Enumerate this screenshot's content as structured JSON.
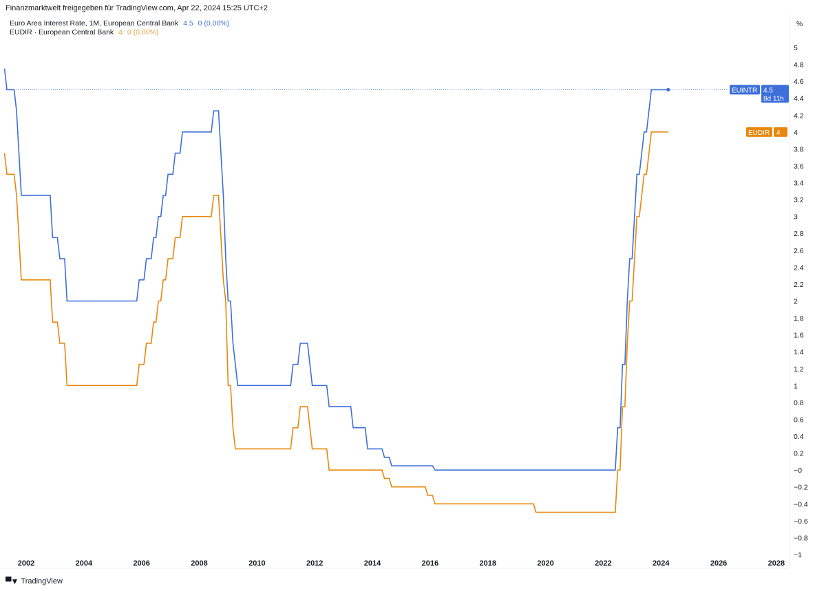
{
  "header": {
    "title": "Finanzmarktwelt freigegeben für TradingView.com, Apr 22, 2024 15:25 UTC+2"
  },
  "legend": [
    {
      "name": "Euro Area Interest Rate, 1M, European Central Bank",
      "value": "4.5",
      "change": "0 (0.00%)",
      "color": "#3d6fd9"
    },
    {
      "name": "EUDIR · European Central Bank",
      "value": "4",
      "change": "0 (0.00%)",
      "color": "#e8a23c"
    }
  ],
  "branding": {
    "logo_text": "TradingView"
  },
  "chart_data": {
    "type": "line",
    "step": true,
    "ylabel": "%",
    "ylim": [
      -1,
      5
    ],
    "xlim": [
      "2001-04",
      "2028-06"
    ],
    "y_ticks": [
      "5",
      "4.8",
      "4.6",
      "4.4",
      "4.2",
      "4",
      "3.8",
      "3.6",
      "3.4",
      "3.2",
      "3",
      "2.8",
      "2.6",
      "2.4",
      "2.2",
      "2",
      "1.8",
      "1.6",
      "1.4",
      "1.2",
      "1",
      "0.8",
      "0.6",
      "0.4",
      "0.2",
      "−0",
      "−0.2",
      "−0.4",
      "−0.6",
      "−0.8",
      "−1"
    ],
    "x_ticks": [
      "2002",
      "2004",
      "2006",
      "2008",
      "2010",
      "2012",
      "2014",
      "2016",
      "2018",
      "2020",
      "2022",
      "2024",
      "2026",
      "2028"
    ],
    "grid": false,
    "last_date": "2024-04",
    "series": [
      {
        "name": "EUINTR",
        "color": "#3d6fd9",
        "last_label": "4.5",
        "countdown": "8d 11h",
        "changes": [
          [
            "2001-04",
            4.75
          ],
          [
            "2001-05",
            4.5
          ],
          [
            "2001-09",
            4.25
          ],
          [
            "2001-10",
            3.75
          ],
          [
            "2001-11",
            3.25
          ],
          [
            "2002-12",
            2.75
          ],
          [
            "2003-03",
            2.5
          ],
          [
            "2003-06",
            2.0
          ],
          [
            "2005-12",
            2.25
          ],
          [
            "2006-03",
            2.5
          ],
          [
            "2006-06",
            2.75
          ],
          [
            "2006-08",
            3.0
          ],
          [
            "2006-10",
            3.25
          ],
          [
            "2006-12",
            3.5
          ],
          [
            "2007-03",
            3.75
          ],
          [
            "2007-06",
            4.0
          ],
          [
            "2008-07",
            4.25
          ],
          [
            "2008-10",
            3.75
          ],
          [
            "2008-11",
            3.25
          ],
          [
            "2008-12",
            2.5
          ],
          [
            "2009-01",
            2.0
          ],
          [
            "2009-03",
            1.5
          ],
          [
            "2009-04",
            1.25
          ],
          [
            "2009-05",
            1.0
          ],
          [
            "2011-04",
            1.25
          ],
          [
            "2011-07",
            1.5
          ],
          [
            "2011-11",
            1.25
          ],
          [
            "2011-12",
            1.0
          ],
          [
            "2012-07",
            0.75
          ],
          [
            "2013-05",
            0.5
          ],
          [
            "2013-11",
            0.25
          ],
          [
            "2014-06",
            0.15
          ],
          [
            "2014-09",
            0.05
          ],
          [
            "2016-03",
            0.0
          ],
          [
            "2022-07",
            0.5
          ],
          [
            "2022-09",
            1.25
          ],
          [
            "2022-11",
            2.0
          ],
          [
            "2022-12",
            2.5
          ],
          [
            "2023-02",
            3.0
          ],
          [
            "2023-03",
            3.5
          ],
          [
            "2023-05",
            3.75
          ],
          [
            "2023-06",
            4.0
          ],
          [
            "2023-08",
            4.25
          ],
          [
            "2023-09",
            4.5
          ]
        ]
      },
      {
        "name": "EUDIR",
        "color": "#e8870c",
        "last_label": "4",
        "changes": [
          [
            "2001-04",
            3.75
          ],
          [
            "2001-05",
            3.5
          ],
          [
            "2001-09",
            3.25
          ],
          [
            "2001-10",
            2.75
          ],
          [
            "2001-11",
            2.25
          ],
          [
            "2002-12",
            1.75
          ],
          [
            "2003-03",
            1.5
          ],
          [
            "2003-06",
            1.0
          ],
          [
            "2005-12",
            1.25
          ],
          [
            "2006-03",
            1.5
          ],
          [
            "2006-06",
            1.75
          ],
          [
            "2006-08",
            2.0
          ],
          [
            "2006-10",
            2.25
          ],
          [
            "2006-12",
            2.5
          ],
          [
            "2007-03",
            2.75
          ],
          [
            "2007-06",
            3.0
          ],
          [
            "2008-07",
            3.25
          ],
          [
            "2008-10",
            2.75
          ],
          [
            "2008-11",
            2.25
          ],
          [
            "2008-12",
            2.0
          ],
          [
            "2009-01",
            1.0
          ],
          [
            "2009-03",
            0.5
          ],
          [
            "2009-04",
            0.25
          ],
          [
            "2011-04",
            0.5
          ],
          [
            "2011-07",
            0.75
          ],
          [
            "2011-11",
            0.5
          ],
          [
            "2011-12",
            0.25
          ],
          [
            "2012-07",
            0.0
          ],
          [
            "2014-06",
            -0.1
          ],
          [
            "2014-09",
            -0.2
          ],
          [
            "2015-12",
            -0.3
          ],
          [
            "2016-03",
            -0.4
          ],
          [
            "2019-09",
            -0.5
          ],
          [
            "2022-07",
            0.0
          ],
          [
            "2022-09",
            0.75
          ],
          [
            "2022-11",
            1.5
          ],
          [
            "2022-12",
            2.0
          ],
          [
            "2023-02",
            2.5
          ],
          [
            "2023-03",
            3.0
          ],
          [
            "2023-05",
            3.25
          ],
          [
            "2023-06",
            3.5
          ],
          [
            "2023-08",
            3.75
          ],
          [
            "2023-09",
            4.0
          ]
        ]
      }
    ]
  }
}
